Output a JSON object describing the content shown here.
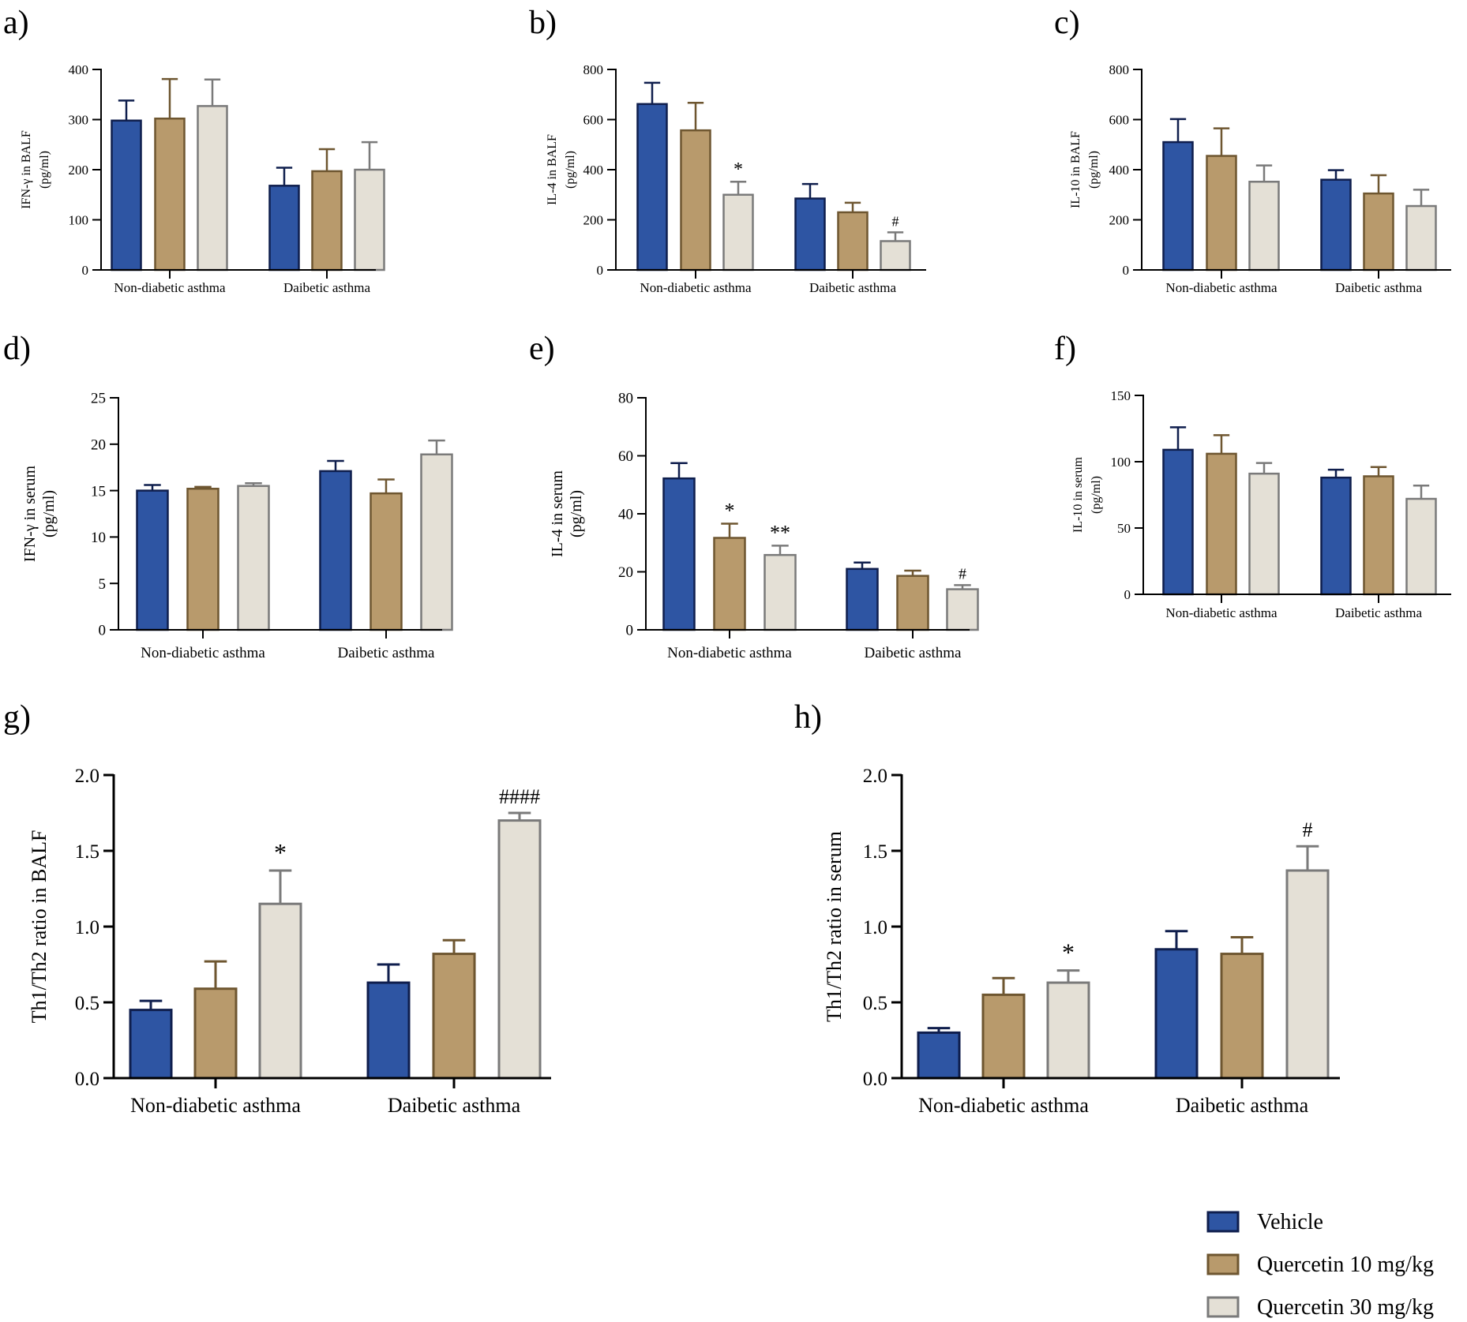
{
  "colors": {
    "vehicle_fill": "#2E55A3",
    "vehicle_edge": "#0F1E4D",
    "q10_fill": "#B89A6C",
    "q10_edge": "#6E5630",
    "q30_fill": "#E4E0D6",
    "q30_edge": "#7A7A7A"
  },
  "legend": {
    "items": [
      {
        "label": "Vehicle",
        "key": "vehicle"
      },
      {
        "label": "Quercetin 10 mg/kg",
        "key": "q10"
      },
      {
        "label": "Quercetin 30 mg/kg",
        "key": "q30"
      }
    ]
  },
  "chart_data": [
    {
      "panel": "a)",
      "type": "bar",
      "ylabel": [
        "IFN-γ in BALF",
        "(pg/ml)"
      ],
      "categories": [
        "Non-diabetic asthma",
        "Daibetic asthma"
      ],
      "ylim": [
        0,
        400
      ],
      "yticks": [
        0,
        100,
        200,
        300,
        400
      ],
      "ytick_labels": [
        "0",
        "100",
        "200",
        "300",
        "400"
      ],
      "series": [
        {
          "name": "Vehicle",
          "values": [
            298,
            168
          ],
          "errors": [
            40,
            36
          ],
          "annotations": [
            "",
            ""
          ]
        },
        {
          "name": "Quercetin 10 mg/kg",
          "values": [
            302,
            197
          ],
          "errors": [
            79,
            44
          ],
          "annotations": [
            "",
            ""
          ]
        },
        {
          "name": "Quercetin 30 mg/kg",
          "values": [
            327,
            200
          ],
          "errors": [
            53,
            55
          ],
          "annotations": [
            "",
            ""
          ]
        }
      ]
    },
    {
      "panel": "b)",
      "type": "bar",
      "ylabel": [
        "IL-4 in BALF",
        "(pg/ml)"
      ],
      "categories": [
        "Non-diabetic asthma",
        "Daibetic asthma"
      ],
      "ylim": [
        0,
        800
      ],
      "yticks": [
        0,
        200,
        400,
        600,
        800
      ],
      "ytick_labels": [
        "0",
        "200",
        "400",
        "600",
        "800"
      ],
      "series": [
        {
          "name": "Vehicle",
          "values": [
            662,
            285
          ],
          "errors": [
            85,
            58
          ],
          "annotations": [
            "",
            ""
          ]
        },
        {
          "name": "Quercetin 10 mg/kg",
          "values": [
            557,
            230
          ],
          "errors": [
            110,
            38
          ],
          "annotations": [
            "",
            ""
          ]
        },
        {
          "name": "Quercetin 30 mg/kg",
          "values": [
            300,
            115
          ],
          "errors": [
            52,
            35
          ],
          "annotations": [
            "*",
            "#"
          ]
        }
      ]
    },
    {
      "panel": "c)",
      "type": "bar",
      "ylabel": [
        "IL-10 in BALF",
        "(pg/ml)"
      ],
      "categories": [
        "Non-diabetic asthma",
        "Daibetic asthma"
      ],
      "ylim": [
        0,
        800
      ],
      "yticks": [
        0,
        200,
        400,
        600,
        800
      ],
      "ytick_labels": [
        "0",
        "200",
        "400",
        "600",
        "800"
      ],
      "series": [
        {
          "name": "Vehicle",
          "values": [
            510,
            360
          ],
          "errors": [
            92,
            38
          ],
          "annotations": [
            "",
            ""
          ]
        },
        {
          "name": "Quercetin 10 mg/kg",
          "values": [
            455,
            305
          ],
          "errors": [
            110,
            73
          ],
          "annotations": [
            "",
            ""
          ]
        },
        {
          "name": "Quercetin 30 mg/kg",
          "values": [
            352,
            255
          ],
          "errors": [
            65,
            65
          ],
          "annotations": [
            "",
            ""
          ]
        }
      ]
    },
    {
      "panel": "d)",
      "type": "bar",
      "ylabel": [
        "IFN-γ in serum",
        "(pg/ml)"
      ],
      "categories": [
        "Non-diabetic asthma",
        "Daibetic asthma"
      ],
      "ylim": [
        0,
        25
      ],
      "yticks": [
        0,
        5,
        10,
        15,
        20,
        25
      ],
      "ytick_labels": [
        "0",
        "5",
        "10",
        "15",
        "20",
        "25"
      ],
      "series": [
        {
          "name": "Vehicle",
          "values": [
            15.0,
            17.1
          ],
          "errors": [
            0.6,
            1.1
          ],
          "annotations": [
            "",
            ""
          ]
        },
        {
          "name": "Quercetin 10 mg/kg",
          "values": [
            15.2,
            14.7
          ],
          "errors": [
            0.2,
            1.5
          ],
          "annotations": [
            "",
            ""
          ]
        },
        {
          "name": "Quercetin 30 mg/kg",
          "values": [
            15.5,
            18.9
          ],
          "errors": [
            0.3,
            1.5
          ],
          "annotations": [
            "",
            ""
          ]
        }
      ]
    },
    {
      "panel": "e)",
      "type": "bar",
      "ylabel": [
        "IL-4 in serum",
        "(pg/ml)"
      ],
      "categories": [
        "Non-diabetic asthma",
        "Daibetic asthma"
      ],
      "ylim": [
        0,
        80
      ],
      "yticks": [
        0,
        20,
        40,
        60,
        80
      ],
      "ytick_labels": [
        "0",
        "20",
        "40",
        "60",
        "80"
      ],
      "series": [
        {
          "name": "Vehicle",
          "values": [
            52.2,
            21.0
          ],
          "errors": [
            5.3,
            2.2
          ],
          "annotations": [
            "",
            ""
          ]
        },
        {
          "name": "Quercetin 10 mg/kg",
          "values": [
            31.7,
            18.6
          ],
          "errors": [
            4.9,
            1.8
          ],
          "annotations": [
            "*",
            ""
          ]
        },
        {
          "name": "Quercetin 30 mg/kg",
          "values": [
            25.8,
            14.0
          ],
          "errors": [
            3.2,
            1.4
          ],
          "annotations": [
            "**",
            "#"
          ]
        }
      ]
    },
    {
      "panel": "f)",
      "type": "bar",
      "ylabel": [
        "IL-10 in serum",
        "(pg/ml)"
      ],
      "categories": [
        "Non-diabetic asthma",
        "Daibetic asthma"
      ],
      "ylim": [
        0,
        150
      ],
      "yticks": [
        0,
        50,
        100,
        150
      ],
      "ytick_labels": [
        "0",
        "50",
        "100",
        "150"
      ],
      "series": [
        {
          "name": "Vehicle",
          "values": [
            109,
            88
          ],
          "errors": [
            17,
            6
          ],
          "annotations": [
            "",
            ""
          ]
        },
        {
          "name": "Quercetin 10 mg/kg",
          "values": [
            106,
            89
          ],
          "errors": [
            14,
            7
          ],
          "annotations": [
            "",
            ""
          ]
        },
        {
          "name": "Quercetin 30 mg/kg",
          "values": [
            91,
            72
          ],
          "errors": [
            8,
            10
          ],
          "annotations": [
            "",
            ""
          ]
        }
      ]
    },
    {
      "panel": "g)",
      "type": "bar",
      "ylabel": [
        "Th1/Th2 ratio in BALF"
      ],
      "categories": [
        "Non-diabetic asthma",
        "Daibetic asthma"
      ],
      "ylim": [
        0,
        2.0
      ],
      "yticks": [
        0,
        0.5,
        1.0,
        1.5,
        2.0
      ],
      "ytick_labels": [
        "0.0",
        "0.5",
        "1.0",
        "1.5",
        "2.0"
      ],
      "series": [
        {
          "name": "Vehicle",
          "values": [
            0.45,
            0.63
          ],
          "errors": [
            0.06,
            0.12
          ],
          "annotations": [
            "",
            ""
          ]
        },
        {
          "name": "Quercetin 10 mg/kg",
          "values": [
            0.59,
            0.82
          ],
          "errors": [
            0.18,
            0.09
          ],
          "annotations": [
            "",
            ""
          ]
        },
        {
          "name": "Quercetin 30 mg/kg",
          "values": [
            1.15,
            1.7
          ],
          "errors": [
            0.22,
            0.05
          ],
          "annotations": [
            "*",
            "####"
          ]
        }
      ]
    },
    {
      "panel": "h)",
      "type": "bar",
      "ylabel": [
        "Th1/Th2 ratio in serum"
      ],
      "categories": [
        "Non-diabetic asthma",
        "Daibetic asthma"
      ],
      "ylim": [
        0,
        2.0
      ],
      "yticks": [
        0,
        0.5,
        1.0,
        1.5,
        2.0
      ],
      "ytick_labels": [
        "0.0",
        "0.5",
        "1.0",
        "1.5",
        "2.0"
      ],
      "series": [
        {
          "name": "Vehicle",
          "values": [
            0.3,
            0.85
          ],
          "errors": [
            0.03,
            0.12
          ],
          "annotations": [
            "",
            ""
          ]
        },
        {
          "name": "Quercetin 10 mg/kg",
          "values": [
            0.55,
            0.82
          ],
          "errors": [
            0.11,
            0.11
          ],
          "annotations": [
            "",
            ""
          ]
        },
        {
          "name": "Quercetin 30 mg/kg",
          "values": [
            0.63,
            1.37
          ],
          "errors": [
            0.08,
            0.16
          ],
          "annotations": [
            "*",
            "#"
          ]
        }
      ]
    }
  ]
}
